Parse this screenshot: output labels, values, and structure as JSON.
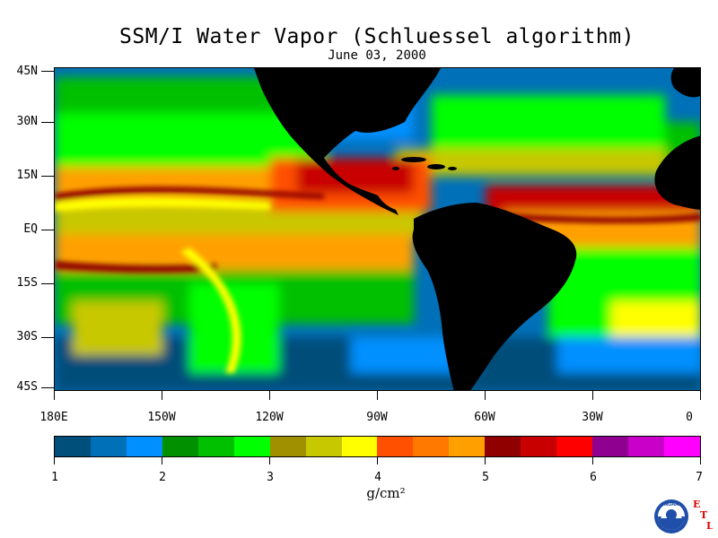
{
  "title": "SSM/I Water Vapor (Schluessel algorithm)",
  "date": "June 03, 2000",
  "axes": {
    "lat_labels": [
      "45N",
      "30N",
      "15N",
      "EQ",
      "15S",
      "30S",
      "45S"
    ],
    "lon_labels": [
      "180E",
      "150W",
      "120W",
      "90W",
      "60W",
      "30W",
      "0"
    ]
  },
  "colorbar": {
    "range": [
      1,
      7
    ],
    "labels": [
      "1",
      "2",
      "3",
      "4",
      "5",
      "6",
      "7"
    ],
    "units": "g/cm²",
    "colors": [
      "#004e7a",
      "#0070b8",
      "#0090ff",
      "#009000",
      "#00c000",
      "#00ff00",
      "#a09000",
      "#c8c800",
      "#ffff00",
      "#ff5000",
      "#ff7800",
      "#ffa000",
      "#900000",
      "#c80000",
      "#ff0000",
      "#900090",
      "#c800c8",
      "#ff00ff"
    ]
  },
  "logo": {
    "noaa_text": "NOAA",
    "etl_letters": [
      "E",
      "T",
      "L"
    ]
  },
  "colors": {
    "land": "#000000",
    "ocean_dry": "#004e7a",
    "accent_red": "#ff0000"
  }
}
